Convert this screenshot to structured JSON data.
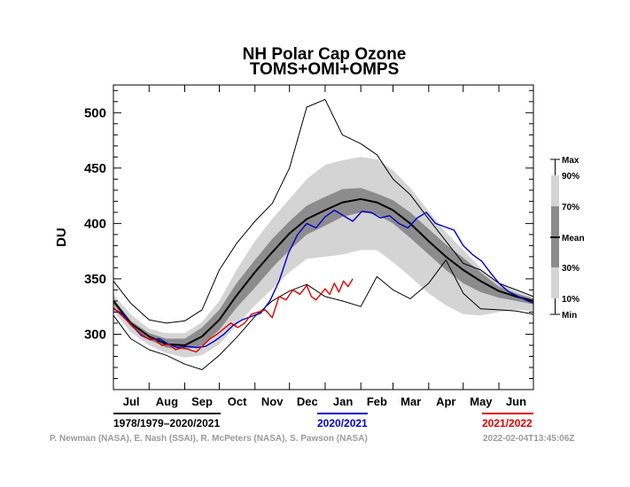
{
  "chart_data": {
    "type": "line",
    "title": "NH Polar Cap Ozone",
    "subtitle": "TOMS+OMI+OMPS",
    "ylabel": "DU",
    "ylim": [
      250,
      525
    ],
    "yticks": [
      300,
      350,
      400,
      450,
      500
    ],
    "ytick_labels": [
      "300",
      "350",
      "400",
      "450",
      "500"
    ],
    "months": [
      "Jul",
      "Aug",
      "Sep",
      "Oct",
      "Nov",
      "Dec",
      "Jan",
      "Feb",
      "Mar",
      "Apr",
      "May",
      "Jun"
    ],
    "x_unit": "day of year starting 1 Jul",
    "xlim": [
      0,
      365
    ],
    "colors": {
      "band_outer": "#d4d4d4",
      "band_mid": "#b3b3b3",
      "band_inner": "#8c8c8c",
      "mean": "#000000",
      "minmax": "#000000",
      "y2021": "#0000cc",
      "y2022": "#dd0000"
    },
    "climatology": {
      "x": [
        0,
        15,
        31,
        46,
        62,
        77,
        92,
        107,
        123,
        138,
        153,
        168,
        184,
        199,
        215,
        229,
        243,
        258,
        274,
        289,
        304,
        319,
        335,
        350,
        365
      ],
      "max": [
        348,
        328,
        313,
        310,
        312,
        322,
        358,
        382,
        402,
        418,
        450,
        505,
        512,
        480,
        472,
        462,
        440,
        426,
        404,
        384,
        364,
        358,
        346,
        340,
        334
      ],
      "p90": [
        336,
        318,
        305,
        301,
        301,
        311,
        330,
        358,
        384,
        404,
        422,
        440,
        453,
        457,
        460,
        458,
        448,
        432,
        411,
        392,
        376,
        360,
        346,
        339,
        333
      ],
      "p70": [
        332,
        312,
        301,
        296,
        296,
        306,
        322,
        346,
        367,
        386,
        402,
        416,
        424,
        431,
        432,
        427,
        421,
        410,
        395,
        381,
        369,
        356,
        343,
        337,
        332
      ],
      "mean": [
        330,
        310,
        298,
        291,
        290,
        298,
        313,
        335,
        356,
        374,
        391,
        404,
        412,
        419,
        422,
        419,
        412,
        400,
        384,
        370,
        358,
        348,
        339,
        334,
        330
      ],
      "p30": [
        327,
        307,
        295,
        288,
        286,
        290,
        304,
        324,
        342,
        360,
        376,
        390,
        398,
        406,
        410,
        408,
        400,
        387,
        372,
        358,
        346,
        338,
        333,
        330,
        327
      ],
      "p10": [
        321,
        302,
        290,
        283,
        279,
        281,
        291,
        308,
        326,
        341,
        356,
        368,
        370,
        372,
        376,
        376,
        365,
        352,
        337,
        326,
        318,
        317,
        320,
        322,
        321
      ],
      "min": [
        317,
        296,
        286,
        281,
        273,
        268,
        281,
        297,
        316,
        330,
        339,
        345,
        334,
        330,
        325,
        352,
        340,
        332,
        346,
        367,
        337,
        323,
        322,
        321,
        318
      ]
    },
    "series": [
      {
        "name": "2020/2021",
        "x": [
          0,
          8,
          16,
          24,
          32,
          40,
          48,
          56,
          64,
          72,
          80,
          88,
          96,
          104,
          112,
          120,
          128,
          136,
          144,
          152,
          160,
          168,
          176,
          184,
          192,
          200,
          208,
          216,
          224,
          232,
          240,
          248,
          256,
          264,
          272,
          280,
          288,
          296,
          304,
          312,
          320,
          328,
          336,
          344,
          352,
          360,
          365
        ],
        "y": [
          323,
          318,
          308,
          299,
          295,
          296,
          291,
          288,
          289,
          288,
          289,
          294,
          300,
          308,
          313,
          316,
          319,
          330,
          348,
          373,
          390,
          400,
          396,
          406,
          412,
          407,
          402,
          411,
          410,
          405,
          407,
          400,
          396,
          405,
          410,
          400,
          397,
          394,
          380,
          372,
          366,
          355,
          345,
          338,
          334,
          330,
          328
        ]
      },
      {
        "name": "2021/2022",
        "x": [
          0,
          6,
          12,
          18,
          24,
          30,
          36,
          42,
          48,
          54,
          60,
          66,
          72,
          78,
          84,
          90,
          96,
          102,
          108,
          114,
          120,
          126,
          132,
          138,
          144,
          150,
          156,
          162,
          168,
          172,
          176,
          180,
          184,
          188,
          192,
          196,
          200,
          204,
          208
        ],
        "y": [
          324,
          318,
          312,
          306,
          300,
          296,
          295,
          290,
          291,
          286,
          288,
          286,
          284,
          290,
          296,
          300,
          305,
          310,
          306,
          310,
          318,
          320,
          322,
          315,
          334,
          331,
          340,
          336,
          344,
          334,
          331,
          336,
          341,
          336,
          346,
          338,
          348,
          343,
          350
        ]
      }
    ],
    "key": [
      "Max",
      "90%",
      "70%",
      "Mean",
      "30%",
      "10%",
      "Min"
    ],
    "legend": [
      {
        "label": "1978/1979–2020/2021",
        "color": "#000000"
      },
      {
        "label": "2020/2021",
        "color": "#0000cc"
      },
      {
        "label": "2021/2022",
        "color": "#dd0000"
      }
    ],
    "credit": "P. Newman (NASA), E. Nash (SSAI), R. McPeters (NASA), S. Pawson (NASA)",
    "timestamp": "2022-02-04T13:45:06Z"
  }
}
